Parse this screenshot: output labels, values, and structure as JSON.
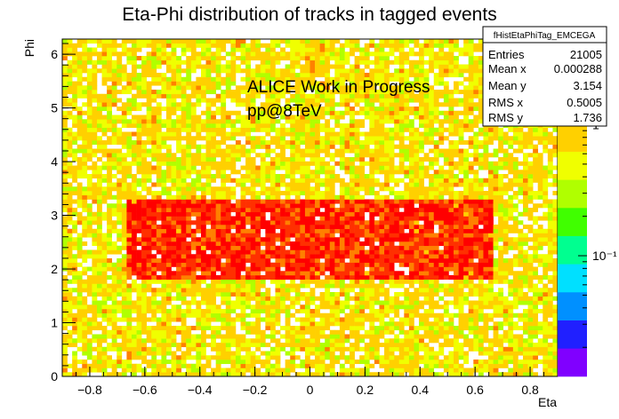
{
  "chart_data": {
    "type": "heatmap",
    "title": "Eta-Phi distribution of tracks in tagged events",
    "xlabel": "Eta",
    "ylabel": "Phi",
    "xlim": [
      -0.9,
      0.9
    ],
    "ylim": [
      0,
      6.283
    ],
    "x_ticks": [
      -0.8,
      -0.6,
      -0.4,
      -0.2,
      0,
      0.2,
      0.4,
      0.6,
      0.8
    ],
    "x_tick_labels": [
      "−0.8",
      "−0.6",
      "−0.4",
      "−0.2",
      "0",
      "0.2",
      "0.4",
      "0.6",
      "0.8"
    ],
    "y_ticks": [
      0,
      1,
      2,
      3,
      4,
      5,
      6
    ],
    "y_tick_labels": [
      "0",
      "1",
      "2",
      "3",
      "4",
      "5",
      "6"
    ],
    "nbins_x": 100,
    "nbins_y": 80,
    "z_scale": "log",
    "z_tick_labels": [
      "1",
      "10⁻¹"
    ],
    "z_ticks": [
      1,
      0.1
    ],
    "z_range": [
      0.012,
      4.5
    ],
    "hot_region": {
      "eta": [
        -0.67,
        0.67
      ],
      "phi": [
        1.8,
        3.3
      ],
      "peak_value": 4
    },
    "background_level": 0.6,
    "annotations": [
      "ALICE Work in Progress",
      "pp@8TeV"
    ],
    "stats": {
      "name": "fHistEtaPhiTag_EMCEGA",
      "entries_label": "Entries",
      "entries": "21005",
      "mean_x_label": "Mean x",
      "mean_x": "0.000288",
      "mean_y_label": "Mean y",
      "mean_y": "3.154",
      "rms_x_label": "RMS x",
      "rms_x": "0.5005",
      "rms_y_label": "RMS y",
      "rms_y": "1.736"
    }
  },
  "colors": {
    "palette": [
      "#8000ff",
      "#2020ff",
      "#0090ff",
      "#00e0ff",
      "#00ff90",
      "#40ff00",
      "#b0ff00",
      "#f0ff00",
      "#ffd000",
      "#ff8000",
      "#ff3000",
      "#ff0000"
    ],
    "axis": "#000000"
  }
}
